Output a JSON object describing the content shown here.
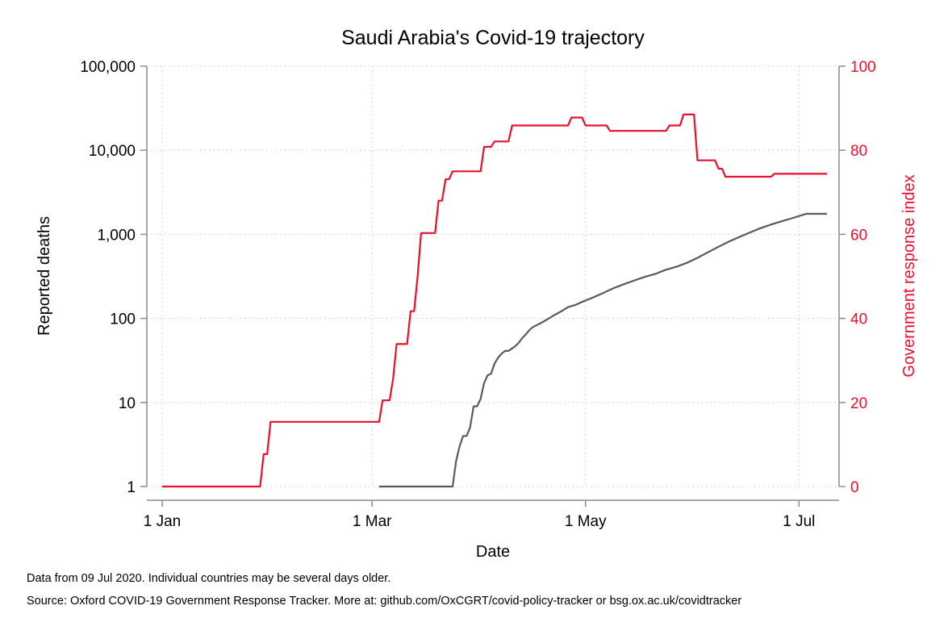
{
  "chart_data": {
    "type": "line",
    "title": "Saudi Arabia's Covid-19 trajectory",
    "xlabel": "Date",
    "ylabel": "Reported deaths",
    "y2label": "Government response index",
    "x_range": [
      "2020-01-01",
      "2020-07-09"
    ],
    "x_ticks": [
      {
        "date": "2020-01-01",
        "label": "1 Jan"
      },
      {
        "date": "2020-03-01",
        "label": "1 Mar"
      },
      {
        "date": "2020-05-01",
        "label": "1 May"
      },
      {
        "date": "2020-07-01",
        "label": "1 Jul"
      }
    ],
    "y_scale": "log",
    "ylim": [
      1,
      100000
    ],
    "y_ticks": [
      {
        "value": 1,
        "label": "1"
      },
      {
        "value": 10,
        "label": "10"
      },
      {
        "value": 100,
        "label": "100"
      },
      {
        "value": 1000,
        "label": "1,000"
      },
      {
        "value": 10000,
        "label": "10,000"
      },
      {
        "value": 100000,
        "label": "100,000"
      }
    ],
    "y2lim": [
      0,
      100
    ],
    "y2_ticks": [
      {
        "value": 0,
        "label": "0"
      },
      {
        "value": 20,
        "label": "20"
      },
      {
        "value": 40,
        "label": "40"
      },
      {
        "value": 60,
        "label": "60"
      },
      {
        "value": 80,
        "label": "80"
      },
      {
        "value": 100,
        "label": "100"
      }
    ],
    "grid": true,
    "colors": {
      "deaths": "#5a5a5a",
      "response": "#e8112d",
      "axis": "#8c8c8c",
      "grid": "#c8c8c8"
    },
    "series": [
      {
        "axis": "left",
        "color": "#5a5a5a",
        "points": [
          [
            "2020-03-03",
            1
          ],
          [
            "2020-03-24",
            1
          ],
          [
            "2020-03-25",
            2
          ],
          [
            "2020-03-26",
            3
          ],
          [
            "2020-03-27",
            4
          ],
          [
            "2020-03-28",
            4
          ],
          [
            "2020-03-29",
            5
          ],
          [
            "2020-03-30",
            9
          ],
          [
            "2020-03-31",
            9
          ],
          [
            "2020-04-01",
            11
          ],
          [
            "2020-04-02",
            17
          ],
          [
            "2020-04-03",
            21
          ],
          [
            "2020-04-04",
            22
          ],
          [
            "2020-04-05",
            29
          ],
          [
            "2020-04-06",
            34
          ],
          [
            "2020-04-07",
            38
          ],
          [
            "2020-04-08",
            41
          ],
          [
            "2020-04-09",
            41
          ],
          [
            "2020-04-10",
            44
          ],
          [
            "2020-04-11",
            47
          ],
          [
            "2020-04-12",
            52
          ],
          [
            "2020-04-13",
            59
          ],
          [
            "2020-04-14",
            65
          ],
          [
            "2020-04-15",
            73
          ],
          [
            "2020-04-16",
            79
          ],
          [
            "2020-04-18",
            87
          ],
          [
            "2020-04-20",
            97
          ],
          [
            "2020-04-22",
            109
          ],
          [
            "2020-04-24",
            121
          ],
          [
            "2020-04-26",
            136
          ],
          [
            "2020-04-28",
            144
          ],
          [
            "2020-04-30",
            157
          ],
          [
            "2020-05-03",
            176
          ],
          [
            "2020-05-06",
            200
          ],
          [
            "2020-05-09",
            229
          ],
          [
            "2020-05-12",
            255
          ],
          [
            "2020-05-15",
            283
          ],
          [
            "2020-05-18",
            312
          ],
          [
            "2020-05-21",
            339
          ],
          [
            "2020-05-24",
            379
          ],
          [
            "2020-05-27",
            411
          ],
          [
            "2020-05-30",
            458
          ],
          [
            "2020-06-02",
            525
          ],
          [
            "2020-06-05",
            611
          ],
          [
            "2020-06-08",
            712
          ],
          [
            "2020-06-11",
            819
          ],
          [
            "2020-06-14",
            932
          ],
          [
            "2020-06-17",
            1052
          ],
          [
            "2020-06-20",
            1184
          ],
          [
            "2020-06-23",
            1307
          ],
          [
            "2020-06-26",
            1428
          ],
          [
            "2020-06-29",
            1551
          ],
          [
            "2020-07-02",
            1698
          ],
          [
            "2020-07-03",
            1752
          ],
          [
            "2020-07-09",
            1752
          ]
        ]
      },
      {
        "axis": "right",
        "step": true,
        "color": "#e8112d",
        "points": [
          [
            "2020-01-01",
            0
          ],
          [
            "2020-01-29",
            0
          ],
          [
            "2020-01-30",
            7.7
          ],
          [
            "2020-01-31",
            7.7
          ],
          [
            "2020-02-01",
            15.4
          ],
          [
            "2020-03-03",
            15.4
          ],
          [
            "2020-03-04",
            20.5
          ],
          [
            "2020-03-06",
            20.5
          ],
          [
            "2020-03-07",
            25.6
          ],
          [
            "2020-03-08",
            33.9
          ],
          [
            "2020-03-11",
            33.9
          ],
          [
            "2020-03-12",
            41.7
          ],
          [
            "2020-03-13",
            41.7
          ],
          [
            "2020-03-14",
            50.0
          ],
          [
            "2020-03-15",
            60.3
          ],
          [
            "2020-03-19",
            60.3
          ],
          [
            "2020-03-20",
            68.0
          ],
          [
            "2020-03-21",
            68.0
          ],
          [
            "2020-03-22",
            73.1
          ],
          [
            "2020-03-23",
            73.1
          ],
          [
            "2020-03-24",
            75.0
          ],
          [
            "2020-04-01",
            75.0
          ],
          [
            "2020-04-02",
            80.8
          ],
          [
            "2020-04-04",
            80.8
          ],
          [
            "2020-04-05",
            82.1
          ],
          [
            "2020-04-09",
            82.1
          ],
          [
            "2020-04-10",
            85.9
          ],
          [
            "2020-04-26",
            85.9
          ],
          [
            "2020-04-27",
            87.8
          ],
          [
            "2020-04-30",
            87.8
          ],
          [
            "2020-05-01",
            85.9
          ],
          [
            "2020-05-07",
            85.9
          ],
          [
            "2020-05-08",
            84.6
          ],
          [
            "2020-05-24",
            84.6
          ],
          [
            "2020-05-25",
            85.9
          ],
          [
            "2020-05-28",
            85.9
          ],
          [
            "2020-05-29",
            88.5
          ],
          [
            "2020-06-01",
            88.5
          ],
          [
            "2020-06-02",
            77.6
          ],
          [
            "2020-06-07",
            77.6
          ],
          [
            "2020-06-08",
            75.6
          ],
          [
            "2020-06-09",
            75.6
          ],
          [
            "2020-06-10",
            73.7
          ],
          [
            "2020-06-23",
            73.7
          ],
          [
            "2020-06-24",
            74.4
          ],
          [
            "2020-07-09",
            74.4
          ]
        ]
      }
    ]
  },
  "footnotes": {
    "line1": "Data from 09 Jul 2020. Individual countries may be several days older.",
    "line2": "Source: Oxford COVID-19 Government Response Tracker. More at: github.com/OxCGRT/covid-policy-tracker or bsg.ox.ac.uk/covidtracker"
  }
}
